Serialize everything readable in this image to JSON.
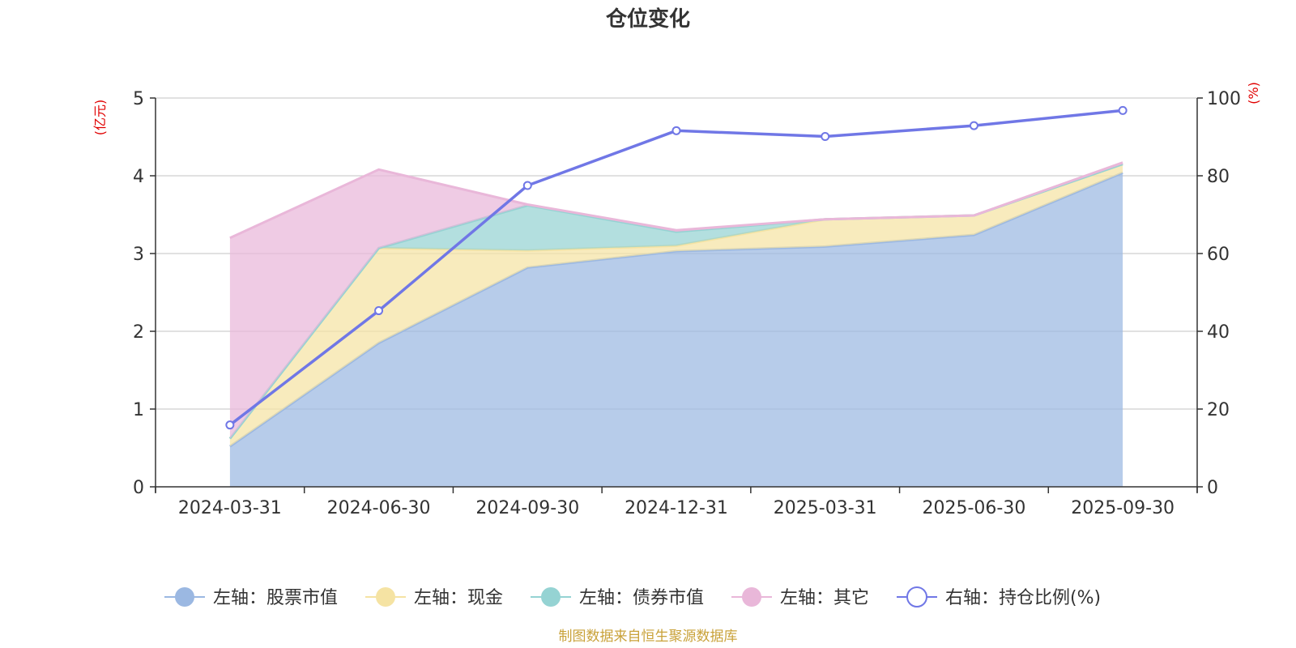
{
  "chart_data": {
    "type": "area",
    "title": "仓位变化",
    "categories": [
      "2024-03-31",
      "2024-06-30",
      "2024-09-30",
      "2024-12-31",
      "2025-03-31",
      "2025-06-30",
      "2025-09-30"
    ],
    "left_axis": {
      "unit": "(亿元)",
      "ylim": [
        0,
        5
      ],
      "ticks": [
        "0",
        "1",
        "2",
        "3",
        "4",
        "5"
      ]
    },
    "right_axis": {
      "unit": "(%)",
      "ylim": [
        0,
        100
      ],
      "ticks": [
        "0",
        "20",
        "40",
        "60",
        "80",
        "100"
      ]
    },
    "grid": true,
    "legend_position": "bottom",
    "series": [
      {
        "name": "左轴：股票市值",
        "axis": "left",
        "stack": true,
        "color": "#9bb8e2",
        "values": [
          0.52,
          1.85,
          2.82,
          3.03,
          3.09,
          3.24,
          4.04
        ]
      },
      {
        "name": "左轴：现金",
        "axis": "left",
        "stack": true,
        "color": "#f5e3a3",
        "values": [
          0.1,
          1.22,
          0.22,
          0.07,
          0.35,
          0.25,
          0.11
        ]
      },
      {
        "name": "左轴：债券市值",
        "axis": "left",
        "stack": true,
        "color": "#95d3d3",
        "values": [
          0,
          0,
          0.58,
          0.18,
          0,
          0,
          0
        ]
      },
      {
        "name": "左轴：其它",
        "axis": "left",
        "stack": true,
        "color": "#e9b7d9",
        "values": [
          2.58,
          1.01,
          0.01,
          0.02,
          0.0,
          0.0,
          0.02
        ]
      },
      {
        "name": "右轴：持仓比例(%)",
        "axis": "right",
        "type": "line",
        "color": "#7077e6",
        "values": [
          15.9,
          45.3,
          77.5,
          91.6,
          90.1,
          92.9,
          96.8
        ]
      }
    ]
  },
  "footer": "制图数据来自恒生聚源数据库"
}
